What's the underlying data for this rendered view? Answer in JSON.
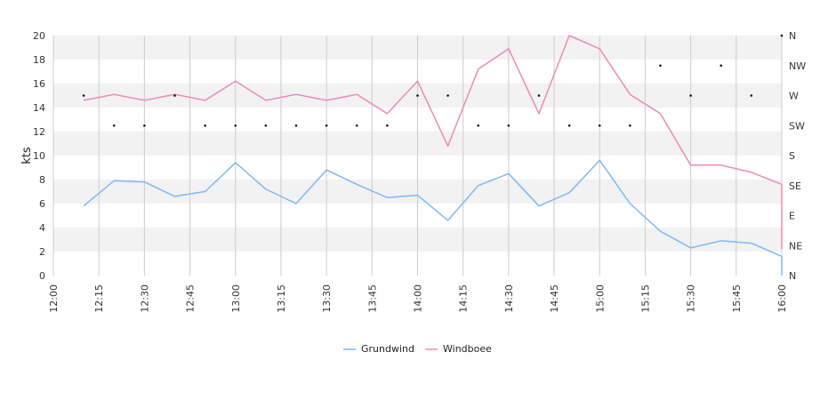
{
  "chart_data": {
    "type": "line",
    "title": "",
    "xlabel": "",
    "ylabel": "kts",
    "ylim": [
      0,
      20
    ],
    "y_ticks": [
      "0",
      "2",
      "4",
      "6",
      "8",
      "10",
      "12",
      "14",
      "16",
      "18",
      "20"
    ],
    "x_tick_labels": [
      "12:00",
      "12:15",
      "12:30",
      "12:45",
      "13:00",
      "13:15",
      "13:30",
      "13:45",
      "14:00",
      "14:15",
      "14:30",
      "14:45",
      "15:00",
      "15:15",
      "15:30",
      "15:45",
      "16:00"
    ],
    "x": [
      "12:10",
      "12:20",
      "12:30",
      "12:40",
      "12:50",
      "13:00",
      "13:10",
      "13:20",
      "13:30",
      "13:40",
      "13:50",
      "14:00",
      "14:10",
      "14:20",
      "14:30",
      "14:40",
      "14:50",
      "15:00",
      "15:10",
      "15:20",
      "15:30",
      "15:40",
      "15:50",
      "16:00",
      "16:00"
    ],
    "series": [
      {
        "name": "Grundwind",
        "color": "#7db9f5",
        "values": [
          5.8,
          7.9,
          7.8,
          6.6,
          7.0,
          9.4,
          7.2,
          6.0,
          8.8,
          7.6,
          6.5,
          6.7,
          4.6,
          7.5,
          8.5,
          5.8,
          6.9,
          9.6,
          6.0,
          3.7,
          2.3,
          2.9,
          2.7,
          1.6,
          0.0
        ]
      },
      {
        "name": "Windboee",
        "color": "#f088b8",
        "values": [
          14.6,
          15.1,
          14.6,
          15.1,
          14.6,
          16.2,
          14.6,
          15.1,
          14.6,
          15.1,
          13.5,
          16.2,
          10.8,
          17.2,
          18.9,
          13.5,
          20.0,
          18.9,
          15.1,
          13.5,
          9.2,
          9.2,
          8.6,
          7.6,
          2.2
        ]
      }
    ],
    "direction_axis": {
      "labels": [
        "N",
        "NE",
        "E",
        "SE",
        "S",
        "SW",
        "W",
        "NW",
        "N"
      ],
      "markers": [
        {
          "x": "12:10",
          "dir": "W"
        },
        {
          "x": "12:20",
          "dir": "SW"
        },
        {
          "x": "12:30",
          "dir": "SW"
        },
        {
          "x": "12:40",
          "dir": "W"
        },
        {
          "x": "12:50",
          "dir": "SW"
        },
        {
          "x": "13:00",
          "dir": "SW"
        },
        {
          "x": "13:10",
          "dir": "SW"
        },
        {
          "x": "13:20",
          "dir": "SW"
        },
        {
          "x": "13:30",
          "dir": "SW"
        },
        {
          "x": "13:40",
          "dir": "SW"
        },
        {
          "x": "13:50",
          "dir": "SW"
        },
        {
          "x": "14:00",
          "dir": "W"
        },
        {
          "x": "14:10",
          "dir": "W"
        },
        {
          "x": "14:20",
          "dir": "SW"
        },
        {
          "x": "14:30",
          "dir": "SW"
        },
        {
          "x": "14:40",
          "dir": "W"
        },
        {
          "x": "14:50",
          "dir": "SW"
        },
        {
          "x": "15:00",
          "dir": "SW"
        },
        {
          "x": "15:10",
          "dir": "SW"
        },
        {
          "x": "15:20",
          "dir": "NW"
        },
        {
          "x": "15:30",
          "dir": "W"
        },
        {
          "x": "15:40",
          "dir": "NW"
        },
        {
          "x": "15:50",
          "dir": "W"
        },
        {
          "x": "16:00",
          "dir": "N"
        }
      ]
    },
    "grid": true,
    "legend_position": "bottom"
  }
}
